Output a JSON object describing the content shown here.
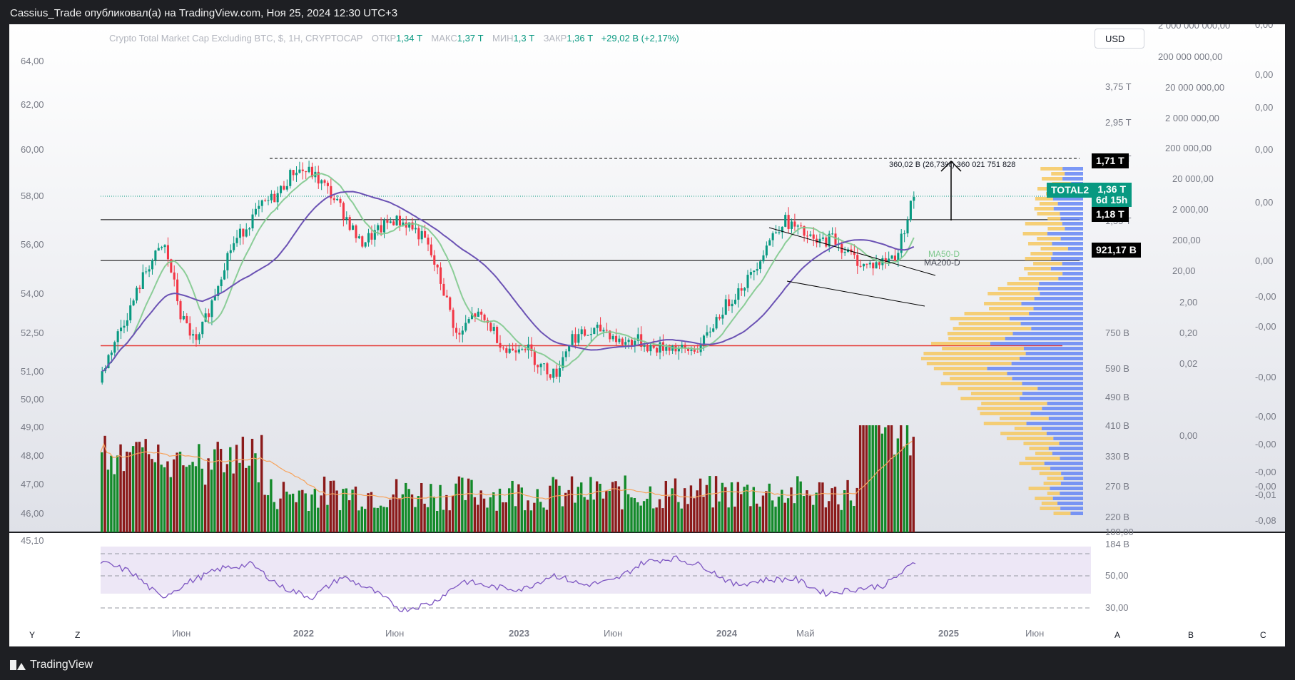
{
  "header": {
    "publisher_line": "Cassius_Trade опубликовал(а) на TradingView.com, Ноя 25, 2024 12:30 UTC+3"
  },
  "legend": {
    "title": "Crypto Total Market Cap Excluding BTC, $, 1H, CRYPTOCAP",
    "open_label": "ОТКР",
    "open": "1,34 T",
    "high_label": "МАКС",
    "high": "1,37 T",
    "low_label": "МИН",
    "low": "1,3 T",
    "close_label": "ЗАКР",
    "close": "1,36 T",
    "change": "+29,02 B (+2,17%)"
  },
  "currency_button": "USD",
  "price_labels": {
    "target": "1,71 T",
    "symbol": "TOTAL2",
    "last": "1,36 T",
    "countdown": "6d 15h",
    "level_1": "1,18 T",
    "level_2": "921,17 B"
  },
  "measure_annotation": "360,02 B (26,73%) 360 021 751 828",
  "ma_labels": {
    "ma50": "MA50-D",
    "ma200": "MA200-D"
  },
  "axes": {
    "left_ticks": [
      "64,00",
      "62,00",
      "60,00",
      "58,00",
      "56,00",
      "54,00",
      "52,50",
      "51,00",
      "50,00",
      "49,00",
      "48,00",
      "47,00",
      "46,00",
      "45,10"
    ],
    "price_ticks": [
      "3,75 T",
      "2,95 T",
      "2,35 T",
      "1,95 T",
      "1,55 T",
      "750 B",
      "590 B",
      "490 B",
      "410 B",
      "330 B",
      "270 B",
      "220 B",
      "184 B"
    ],
    "volume_ticks": [
      "2 000 000 000,00",
      "200 000 000,00",
      "20 000 000,00",
      "2 000 000,00",
      "200 000,00",
      "20 000,00",
      "2 000,00",
      "200,00",
      "20,00",
      "2,00",
      "0,20",
      "0,02",
      "0,00"
    ],
    "far_right_ticks": [
      "0,00",
      "0,00",
      "0,00",
      "0,00",
      "0,00",
      "0,00",
      "-0,00",
      "-0,00",
      "-0,00",
      "-0,00",
      "-0,00",
      "-0,00",
      "-0,00",
      "-0,01",
      "-0,08"
    ],
    "rsi_ticks": [
      "100,00",
      "50,00",
      "30,00"
    ],
    "time_ticks": [
      "Июн",
      "2022",
      "Июн",
      "2023",
      "Июн",
      "2024",
      "Май",
      "2025",
      "Июн"
    ]
  },
  "footer_buttons": {
    "y": "Y",
    "z": "Z",
    "a": "A",
    "b": "B",
    "c": "C"
  },
  "branding": "TradingView",
  "colors": {
    "up": "#089981",
    "down": "#f23645",
    "vol_up": "#138a2a",
    "vol_down": "#8b1a1a",
    "ma50": "#7fc98d",
    "ma200": "#6b52b4",
    "vol_ma": "#f7a35c",
    "rsi": "#7e57c2",
    "support": "#e53935",
    "vp_up": "#f6c85f",
    "vp_down": "#5d7ff5"
  },
  "chart_data": {
    "type": "candlestick",
    "title": "Crypto Total Market Cap Excluding BTC, $, 1H, CRYPTOCAP",
    "unit": "USD (T = trillion, B = billion)",
    "scale": "log",
    "ylim": [
      "184 B",
      "3,75 T"
    ],
    "x_range": [
      "2021-04",
      "2025-08"
    ],
    "price_path_T": [
      0.44,
      0.57,
      0.7,
      0.89,
      1.01,
      0.66,
      0.55,
      0.73,
      0.98,
      1.13,
      1.28,
      1.38,
      1.6,
      1.57,
      1.42,
      1.23,
      1.02,
      1.09,
      1.18,
      1.15,
      1.04,
      0.8,
      0.57,
      0.67,
      0.62,
      0.53,
      0.56,
      0.49,
      0.46,
      0.58,
      0.59,
      0.61,
      0.56,
      0.57,
      0.54,
      0.55,
      0.53,
      0.55,
      0.66,
      0.75,
      0.84,
      1.02,
      1.18,
      1.1,
      1.02,
      1.06,
      0.96,
      0.89,
      0.91,
      0.96,
      1.36
    ],
    "key_levels_T": [
      1.18,
      0.92117,
      0.55
    ],
    "target_T": 1.71,
    "last_T": 1.36,
    "measured_move": "360,02 B (26,73%)",
    "moving_averages": [
      "MA50-D",
      "MA200-D"
    ],
    "volume_up_shares": [
      0.5,
      0.8,
      0.7,
      0.4,
      0.5,
      0.4,
      0.5,
      0.3,
      0.4,
      0.5,
      0.6,
      0.5,
      0.4,
      0.3,
      0.5,
      0.6,
      0.7,
      0.9,
      1.0
    ],
    "rsi_ticks": [
      100,
      50,
      30
    ],
    "rsi_path": [
      74,
      65,
      40,
      56,
      68,
      72,
      50,
      40,
      60,
      47,
      28,
      35,
      56,
      50,
      48,
      62,
      52,
      56,
      74,
      78,
      70,
      52,
      57,
      58,
      44,
      48,
      52,
      74
    ]
  }
}
